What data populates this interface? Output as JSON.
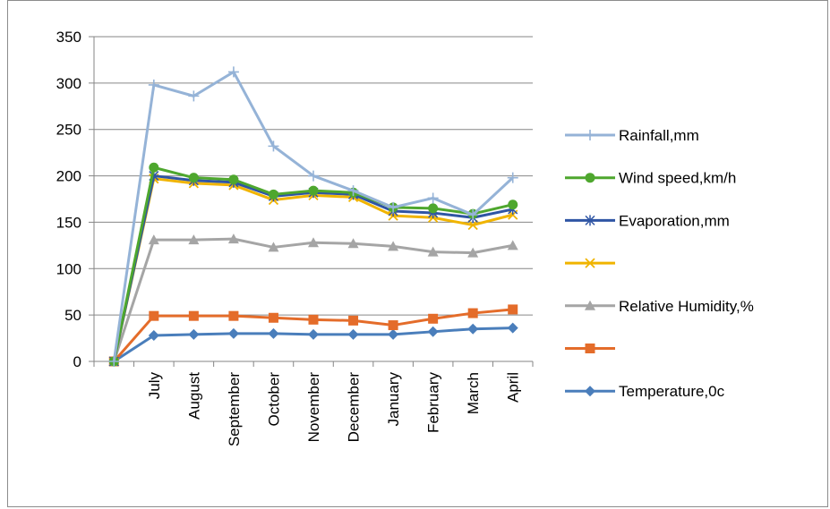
{
  "chart_data": {
    "type": "line",
    "categories": [
      "",
      "July",
      "August",
      "September",
      "October",
      "November",
      "December",
      "January",
      "February",
      "March",
      "April"
    ],
    "ylim": [
      0,
      350
    ],
    "yticks": [
      0,
      50,
      100,
      150,
      200,
      250,
      300,
      350
    ],
    "grid": "horizontal",
    "legend_position": "right",
    "series": [
      {
        "name": "Rainfall,mm",
        "color": "#95b3d7",
        "marker": "plus",
        "values": [
          0,
          298,
          286,
          312,
          232,
          200,
          184,
          166,
          176,
          158,
          198
        ]
      },
      {
        "name": "Wind speed,km/h",
        "color": "#4ea72e",
        "marker": "circle",
        "values": [
          0,
          209,
          198,
          196,
          180,
          184,
          182,
          166,
          165,
          159,
          169
        ]
      },
      {
        "name": "Evaporation,mm",
        "color": "#2f55a4",
        "marker": "asterisk",
        "values": [
          0,
          200,
          195,
          193,
          178,
          182,
          180,
          162,
          160,
          155,
          164
        ]
      },
      {
        "name": "",
        "color": "#f0b400",
        "marker": "x",
        "values": [
          0,
          197,
          192,
          190,
          174,
          179,
          177,
          157,
          155,
          147,
          158
        ]
      },
      {
        "name": "Relative Humidity,%",
        "color": "#a5a5a5",
        "marker": "triangle",
        "values": [
          0,
          131,
          131,
          132,
          123,
          128,
          127,
          124,
          118,
          117,
          125
        ]
      },
      {
        "name": "",
        "color": "#e46c2a",
        "marker": "square",
        "values": [
          0,
          49,
          49,
          49,
          47,
          45,
          44,
          39,
          46,
          52,
          56
        ]
      },
      {
        "name": "Temperature,0c",
        "color": "#4a7ebb",
        "marker": "diamond",
        "values": [
          0,
          28,
          29,
          30,
          30,
          29,
          29,
          29,
          32,
          35,
          36
        ]
      }
    ]
  }
}
